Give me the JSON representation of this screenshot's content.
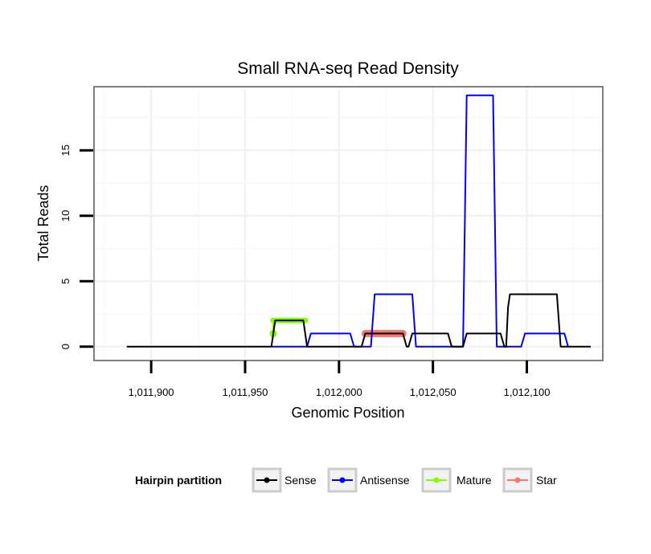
{
  "chart_data": {
    "type": "line",
    "title": "Small RNA-seq Read Density",
    "xlabel": "Genomic Position",
    "ylabel": "Total Reads",
    "xlim": [
      1011870,
      1012140
    ],
    "ylim": [
      -1,
      19.8
    ],
    "x_ticks": [
      1011900,
      1011950,
      1012000,
      1012050,
      1012100
    ],
    "x_tick_labels": [
      "1,011,900",
      "1,011,950",
      "1,012,000",
      "1,012,050",
      "1,012,100"
    ],
    "y_ticks": [
      0,
      5,
      10,
      15
    ],
    "y_tick_labels": [
      "0",
      "5",
      "10",
      "15"
    ],
    "grid": true,
    "legend_position": "bottom",
    "legend_title": "Hairpin partition",
    "series": [
      {
        "name": "Sense",
        "color": "#000000",
        "points": [
          [
            1011887,
            0
          ],
          [
            1011964,
            0
          ],
          [
            1011966,
            2
          ],
          [
            1011981,
            2
          ],
          [
            1011983,
            0
          ],
          [
            1012012,
            0
          ],
          [
            1012014,
            1
          ],
          [
            1012034,
            1
          ],
          [
            1012036,
            0
          ],
          [
            1012037,
            0
          ],
          [
            1012039,
            1
          ],
          [
            1012058,
            1
          ],
          [
            1012060,
            0
          ],
          [
            1012066,
            0
          ],
          [
            1012068,
            1
          ],
          [
            1012086,
            1
          ],
          [
            1012088,
            0
          ],
          [
            1012089,
            0
          ],
          [
            1012090,
            3
          ],
          [
            1012091,
            4
          ],
          [
            1012116,
            4
          ],
          [
            1012118,
            0
          ],
          [
            1012134,
            0
          ]
        ]
      },
      {
        "name": "Antisense",
        "color": "#0000FF",
        "points": [
          [
            1011964,
            0
          ],
          [
            1011983,
            0
          ],
          [
            1011985,
            1
          ],
          [
            1012006,
            1
          ],
          [
            1012008,
            0
          ],
          [
            1012017,
            0
          ],
          [
            1012019,
            4
          ],
          [
            1012039,
            4
          ],
          [
            1012041,
            0
          ],
          [
            1012058,
            0
          ],
          [
            1012066,
            0
          ],
          [
            1012068,
            19.2
          ],
          [
            1012082,
            19.2
          ],
          [
            1012084,
            0
          ],
          [
            1012097,
            0
          ],
          [
            1012099,
            1
          ],
          [
            1012120,
            1
          ],
          [
            1012122,
            0
          ]
        ]
      },
      {
        "name": "Mature",
        "color": "#80FF00",
        "points": [
          [
            1011965,
            1
          ],
          [
            1011965,
            2
          ],
          [
            1011982,
            2
          ]
        ]
      },
      {
        "name": "Star",
        "color": "#F8766D",
        "points": [
          [
            1012014,
            1
          ],
          [
            1012034,
            1
          ]
        ]
      }
    ]
  }
}
